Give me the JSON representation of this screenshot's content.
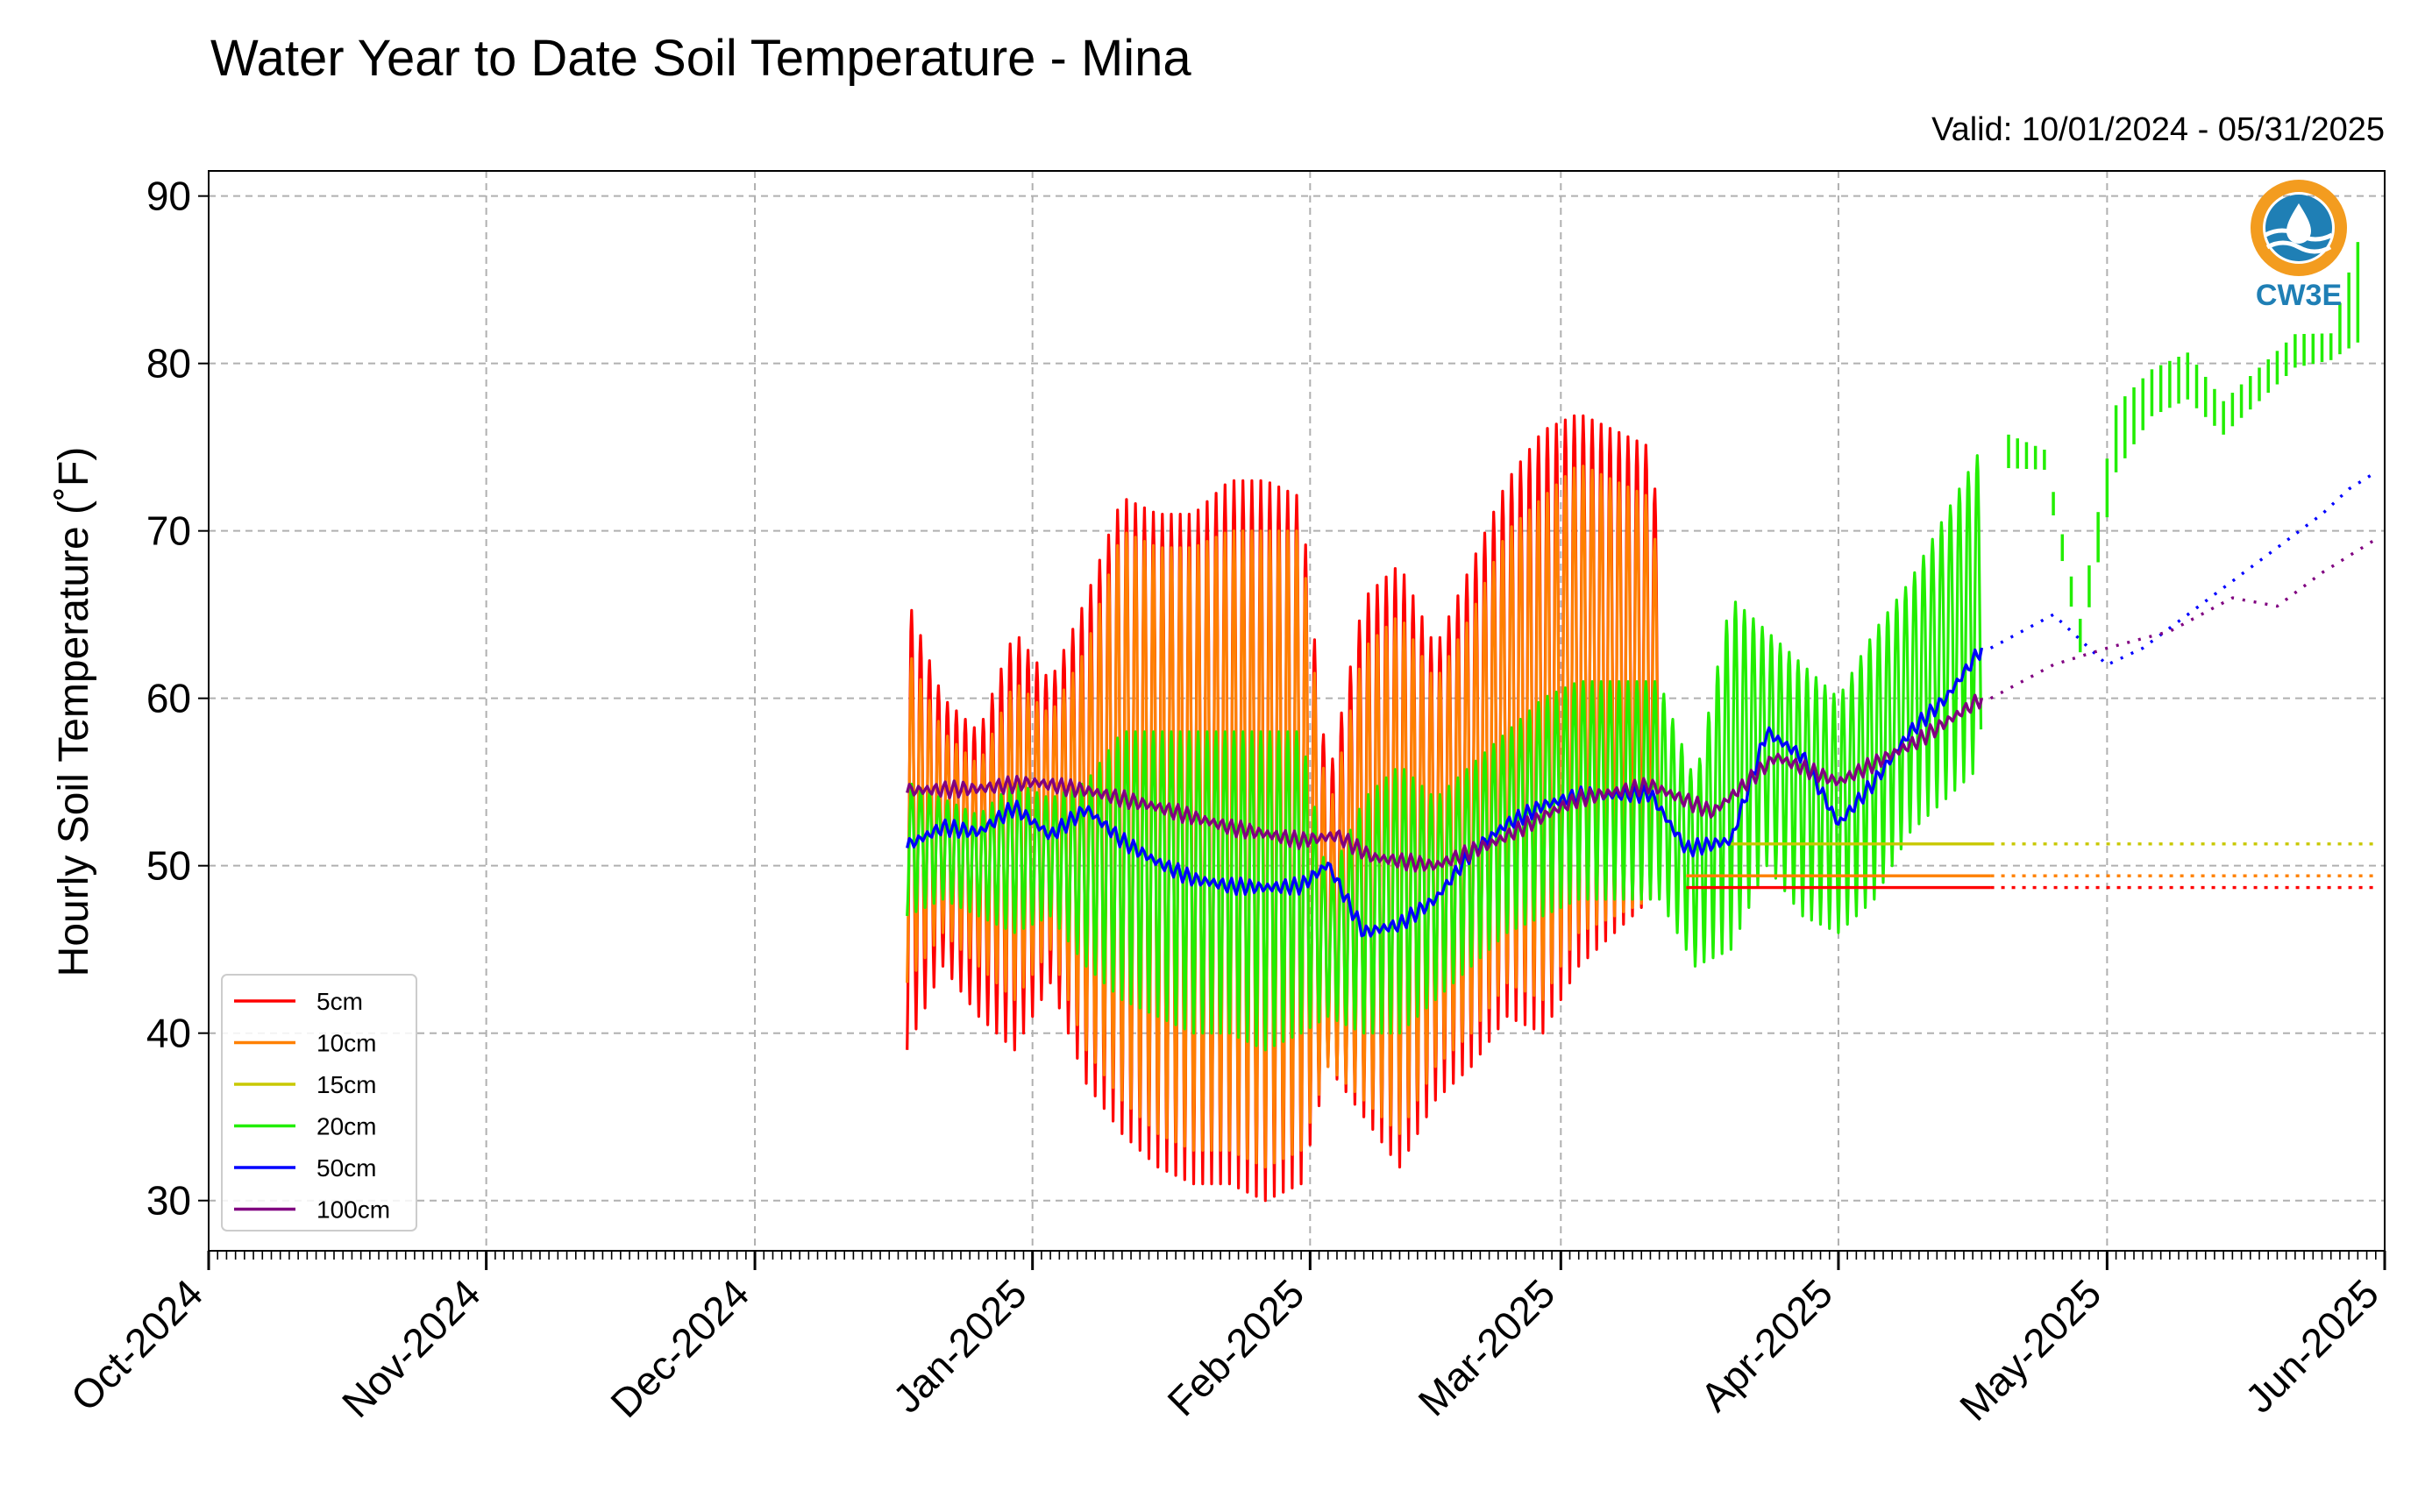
{
  "chart_data": {
    "type": "line",
    "title": "Water Year to Date Soil Temperature - Mina",
    "subtitle": "Valid: 10/01/2024 - 05/31/2025",
    "ylabel": "Hourly Soil Temperature ( $^\\circ$F)",
    "ylabel_display": "Hourly Soil Temperature (˚F)",
    "xlabel": "",
    "ylim": [
      27,
      91.5
    ],
    "xlim": [
      "2024-10-01",
      "2025-06-01"
    ],
    "yticks": [
      30,
      40,
      50,
      60,
      70,
      80,
      90
    ],
    "xticks": [
      "Oct-2024",
      "Nov-2024",
      "Dec-2024",
      "Jan-2025",
      "Feb-2025",
      "Mar-2025",
      "Apr-2025",
      "May-2025",
      "Jun-2025"
    ],
    "grid": true,
    "legend_position": "lower left",
    "logo_text": "CW3E",
    "series": [
      {
        "name": "5cm",
        "color": "#ff0000",
        "envelope": {
          "dates": [
            "2024-12-18",
            "2024-12-22",
            "2024-12-26",
            "2024-12-30",
            "2025-01-03",
            "2025-01-07",
            "2025-01-11",
            "2025-01-15",
            "2025-01-19",
            "2025-01-23",
            "2025-01-27",
            "2025-01-31",
            "2025-02-03",
            "2025-02-07",
            "2025-02-11",
            "2025-02-15",
            "2025-02-19",
            "2025-02-23",
            "2025-02-27",
            "2025-03-03",
            "2025-03-11",
            "2025-03-12"
          ],
          "min": [
            39,
            44,
            41,
            39,
            43,
            37,
            34,
            32,
            31,
            31,
            30,
            31,
            38,
            35,
            32,
            36,
            38,
            41,
            40,
            44,
            48,
            49
          ],
          "max": [
            66,
            60,
            58,
            64,
            61,
            66,
            72,
            71,
            71,
            73,
            73,
            72,
            55,
            66,
            68,
            63,
            68,
            73,
            76,
            77,
            75,
            70
          ]
        },
        "flat": {
          "start": "2025-03-15",
          "end": "2025-05-31",
          "value": 48.7,
          "solid_until": "2025-04-18"
        }
      },
      {
        "name": "10cm",
        "color": "#ff8000",
        "envelope": {
          "dates": [
            "2024-12-18",
            "2024-12-22",
            "2024-12-26",
            "2024-12-30",
            "2025-01-03",
            "2025-01-07",
            "2025-01-11",
            "2025-01-15",
            "2025-01-19",
            "2025-01-23",
            "2025-01-27",
            "2025-01-31",
            "2025-02-03",
            "2025-02-07",
            "2025-02-11",
            "2025-02-15",
            "2025-02-19",
            "2025-02-23",
            "2025-02-27",
            "2025-03-03",
            "2025-03-11",
            "2025-03-12"
          ],
          "min": [
            43,
            46,
            44,
            42,
            45,
            39,
            36,
            34,
            33,
            33,
            32,
            33,
            38,
            36,
            34,
            38,
            40,
            43,
            42,
            46,
            48,
            49
          ],
          "max": [
            63,
            58,
            56,
            61,
            59,
            63,
            70,
            69,
            69,
            70,
            70,
            70,
            53,
            63,
            65,
            61,
            65,
            70,
            72,
            74,
            72,
            67
          ]
        },
        "flat": {
          "start": "2025-03-15",
          "end": "2025-05-31",
          "value": 49.4,
          "solid_until": "2025-04-18"
        }
      },
      {
        "name": "15cm",
        "color": "#c8c800",
        "flat": {
          "start": "2025-03-20",
          "end": "2025-05-31",
          "value": 51.3,
          "solid_until": "2025-04-18"
        }
      },
      {
        "name": "20cm",
        "color": "#22ee00",
        "envelope": {
          "dates": [
            "2024-12-18",
            "2024-12-22",
            "2024-12-26",
            "2024-12-30",
            "2025-01-03",
            "2025-01-07",
            "2025-01-11",
            "2025-01-15",
            "2025-01-19",
            "2025-01-23",
            "2025-01-27",
            "2025-01-31",
            "2025-02-03",
            "2025-02-07",
            "2025-02-11",
            "2025-02-15",
            "2025-02-19",
            "2025-02-23",
            "2025-02-27",
            "2025-03-03",
            "2025-03-12",
            "2025-03-16",
            "2025-03-20",
            "2025-03-24",
            "2025-03-28",
            "2025-04-01",
            "2025-04-05",
            "2025-04-09",
            "2025-04-13",
            "2025-04-17"
          ],
          "min": [
            47,
            48,
            47,
            46,
            47,
            44,
            42,
            41,
            40,
            40,
            39,
            40,
            41,
            40,
            40,
            42,
            44,
            46,
            47,
            48,
            48,
            44,
            45,
            50,
            47,
            46,
            48,
            52,
            54,
            56
          ],
          "max": [
            55,
            54,
            53,
            55,
            54,
            55,
            58,
            58,
            58,
            58,
            58,
            58,
            49,
            54,
            56,
            54,
            56,
            58,
            60,
            61,
            61,
            55,
            66,
            64,
            62,
            60,
            64,
            67,
            71,
            75
          ]
        },
        "dotted": {
          "dates": [
            "2025-04-20",
            "2025-04-24",
            "2025-04-28",
            "2025-05-02",
            "2025-05-06",
            "2025-05-10",
            "2025-05-14",
            "2025-05-18",
            "2025-05-22",
            "2025-05-26",
            "2025-05-29"
          ],
          "min": [
            71,
            72,
            60,
            68,
            73,
            74,
            73,
            75,
            77,
            78,
            73
          ],
          "max": [
            76,
            75,
            65,
            78,
            80,
            81,
            78,
            80,
            82,
            82,
            88
          ]
        }
      },
      {
        "name": "50cm",
        "color": "#0000ff",
        "line": {
          "dates": [
            "2024-12-18",
            "2024-12-22",
            "2024-12-26",
            "2024-12-30",
            "2025-01-03",
            "2025-01-07",
            "2025-01-11",
            "2025-01-15",
            "2025-01-19",
            "2025-01-23",
            "2025-01-27",
            "2025-01-31",
            "2025-02-03",
            "2025-02-07",
            "2025-02-11",
            "2025-02-15",
            "2025-02-19",
            "2025-02-23",
            "2025-02-27",
            "2025-03-03",
            "2025-03-11",
            "2025-03-15",
            "2025-03-20",
            "2025-03-24",
            "2025-03-28",
            "2025-04-01",
            "2025-04-05",
            "2025-04-09",
            "2025-04-13",
            "2025-04-17"
          ],
          "values": [
            51.2,
            52.3,
            52.0,
            53.5,
            51.8,
            53.4,
            51.5,
            50.2,
            49.2,
            48.8,
            48.7,
            48.8,
            50.1,
            46.0,
            46.5,
            48.0,
            50.8,
            52.5,
            53.6,
            54.2,
            54.3,
            51.0,
            51.5,
            58.0,
            56.5,
            52.5,
            55.0,
            58.0,
            60.0,
            63.0
          ]
        },
        "dotted": {
          "dates": [
            "2025-04-18",
            "2025-04-25",
            "2025-05-01",
            "2025-05-05",
            "2025-05-10",
            "2025-05-15",
            "2025-05-20",
            "2025-05-25",
            "2025-05-28",
            "2025-05-31"
          ],
          "values": [
            63.0,
            65.0,
            62.0,
            63.0,
            65.0,
            67.0,
            69.0,
            71.0,
            72.5,
            73.5
          ]
        }
      },
      {
        "name": "100cm",
        "color": "#800080",
        "line": {
          "dates": [
            "2024-12-18",
            "2024-12-26",
            "2025-01-01",
            "2025-01-07",
            "2025-01-15",
            "2025-01-23",
            "2025-01-31",
            "2025-02-04",
            "2025-02-08",
            "2025-02-15",
            "2025-02-22",
            "2025-03-01",
            "2025-03-03",
            "2025-03-11",
            "2025-03-18",
            "2025-03-25",
            "2025-04-01",
            "2025-04-10",
            "2025-04-17"
          ],
          "values": [
            54.5,
            54.6,
            55.0,
            54.5,
            53.5,
            52.3,
            51.5,
            51.8,
            50.5,
            50.0,
            51.5,
            53.5,
            54.0,
            54.8,
            53.2,
            56.5,
            55.0,
            57.5,
            60.0
          ]
        },
        "dotted": {
          "dates": [
            "2025-04-18",
            "2025-04-25",
            "2025-05-01",
            "2025-05-08",
            "2025-05-15",
            "2025-05-20",
            "2025-05-25",
            "2025-05-31"
          ],
          "values": [
            60.0,
            62.0,
            63.0,
            64.0,
            66.0,
            65.5,
            67.5,
            69.5
          ]
        }
      }
    ]
  }
}
